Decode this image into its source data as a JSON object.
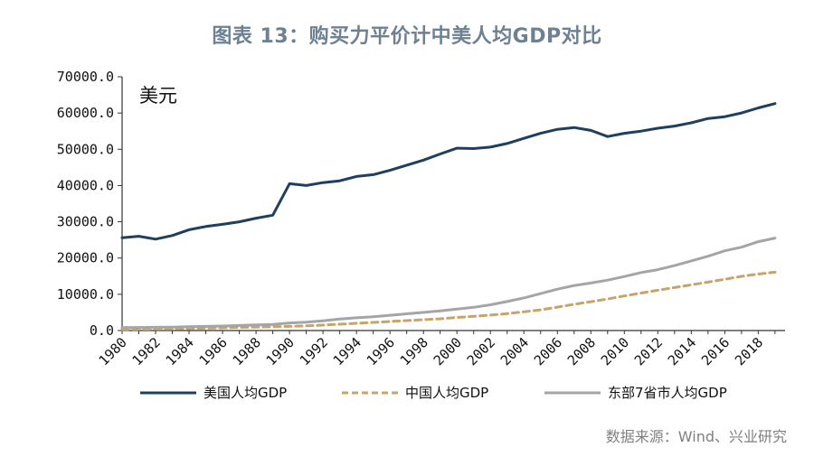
{
  "figure": {
    "title": "图表 13：购买力平价计中美人均GDP对比",
    "unit": "美元",
    "source": "数据来源：Wind、兴业研究"
  },
  "chart_data": {
    "type": "line",
    "title": "",
    "xlabel": "",
    "ylabel": "美元",
    "ylim": [
      0,
      70000
    ],
    "yticks": [
      "0.0",
      "10000.0",
      "20000.0",
      "30000.0",
      "40000.0",
      "50000.0",
      "60000.0",
      "70000.0"
    ],
    "xticks": [
      "1980",
      "1982",
      "1984",
      "1986",
      "1988",
      "1990",
      "1992",
      "1994",
      "1996",
      "1998",
      "2000",
      "2002",
      "2004",
      "2006",
      "2008",
      "2010",
      "2012",
      "2014",
      "2016",
      "2018"
    ],
    "x": [
      1980,
      1981,
      1982,
      1983,
      1984,
      1985,
      1986,
      1987,
      1988,
      1989,
      1990,
      1991,
      1992,
      1993,
      1994,
      1995,
      1996,
      1997,
      1998,
      1999,
      2000,
      2001,
      2002,
      2003,
      2004,
      2005,
      2006,
      2007,
      2008,
      2009,
      2010,
      2011,
      2012,
      2013,
      2014,
      2015,
      2016,
      2017,
      2018,
      2019
    ],
    "legend_position": "bottom",
    "grid": false,
    "series": [
      {
        "name": "美国人均GDP",
        "color": "#1f3f5f",
        "style": "solid",
        "values": [
          25600,
          26000,
          25200,
          26200,
          27800,
          28700,
          29300,
          30000,
          31000,
          31800,
          40500,
          40000,
          40800,
          41300,
          42500,
          43000,
          44200,
          45600,
          47000,
          48700,
          50300,
          50200,
          50600,
          51600,
          53000,
          54400,
          55500,
          56000,
          55200,
          53500,
          54400,
          55000,
          55800,
          56400,
          57300,
          58500,
          59000,
          60000,
          61400,
          62600
        ]
      },
      {
        "name": "中国人均GDP",
        "color": "#c8a46a",
        "style": "dashed",
        "values": [
          300,
          350,
          400,
          450,
          550,
          650,
          750,
          850,
          950,
          1050,
          1150,
          1300,
          1500,
          1750,
          2000,
          2250,
          2500,
          2750,
          3000,
          3250,
          3600,
          3900,
          4250,
          4650,
          5150,
          5700,
          6450,
          7250,
          7950,
          8700,
          9550,
          10350,
          11100,
          11850,
          12600,
          13350,
          14150,
          14950,
          15600,
          16100
        ]
      },
      {
        "name": "东部7省市人均GDP",
        "color": "#a5a5a5",
        "style": "solid",
        "values": [
          800,
          850,
          900,
          950,
          1050,
          1150,
          1250,
          1400,
          1550,
          1700,
          2100,
          2300,
          2700,
          3200,
          3500,
          3800,
          4200,
          4600,
          5000,
          5400,
          5900,
          6400,
          7100,
          8000,
          9000,
          10200,
          11400,
          12400,
          13100,
          13900,
          14900,
          16000,
          16800,
          17900,
          19200,
          20500,
          22000,
          23000,
          24500,
          25500
        ]
      }
    ]
  }
}
